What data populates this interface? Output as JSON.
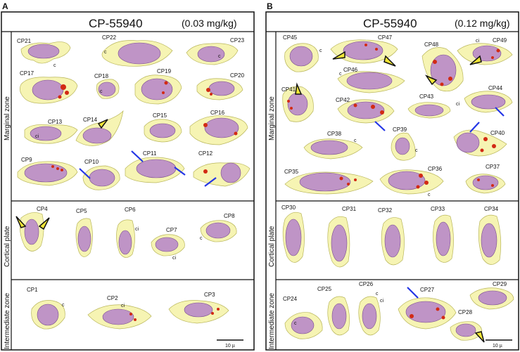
{
  "panels": [
    {
      "letter": "A",
      "title": "CP-55940",
      "dose": "(0.03 mg/kg)",
      "zones": [
        "Marginal zone",
        "Cortical plate",
        "Intermediate zone"
      ],
      "scale_bar": "10 µ",
      "cells": [
        "CP21",
        "CP22",
        "CP23",
        "CP17",
        "CP18",
        "CP19",
        "CP20",
        "CP13",
        "CP14",
        "CP15",
        "CP16",
        "CP9",
        "CP10",
        "CP11",
        "CP12",
        "CP4",
        "CP5",
        "CP6",
        "CP7",
        "CP8",
        "CP1",
        "CP2",
        "CP3"
      ]
    },
    {
      "letter": "B",
      "title": "CP-55940",
      "dose": "(0.12 mg/kg)",
      "zones": [
        "Marginal zone",
        "Cortical plate",
        "Intermediate zone"
      ],
      "scale_bar": "10 µ",
      "cells": [
        "CP45",
        "CP47",
        "CP48",
        "CP49",
        "CP46",
        "CP41",
        "CP42",
        "CP43",
        "CP44",
        "CP38",
        "CP39",
        "CP40",
        "CP35",
        "CP36",
        "CP37",
        "CP30",
        "CP31",
        "CP32",
        "CP33",
        "CP34",
        "CP24",
        "CP25",
        "CP26",
        "CP27",
        "CP29",
        "CP28"
      ]
    }
  ],
  "annotation_c": "c",
  "annotation_ci": "ci",
  "colors": {
    "cell": "#f4f2a6",
    "nucleus": "#b98ac8",
    "vesicle": "#d22a14",
    "arrow_blue": "#2436e6",
    "arrow_yellow": "#f2e636"
  }
}
